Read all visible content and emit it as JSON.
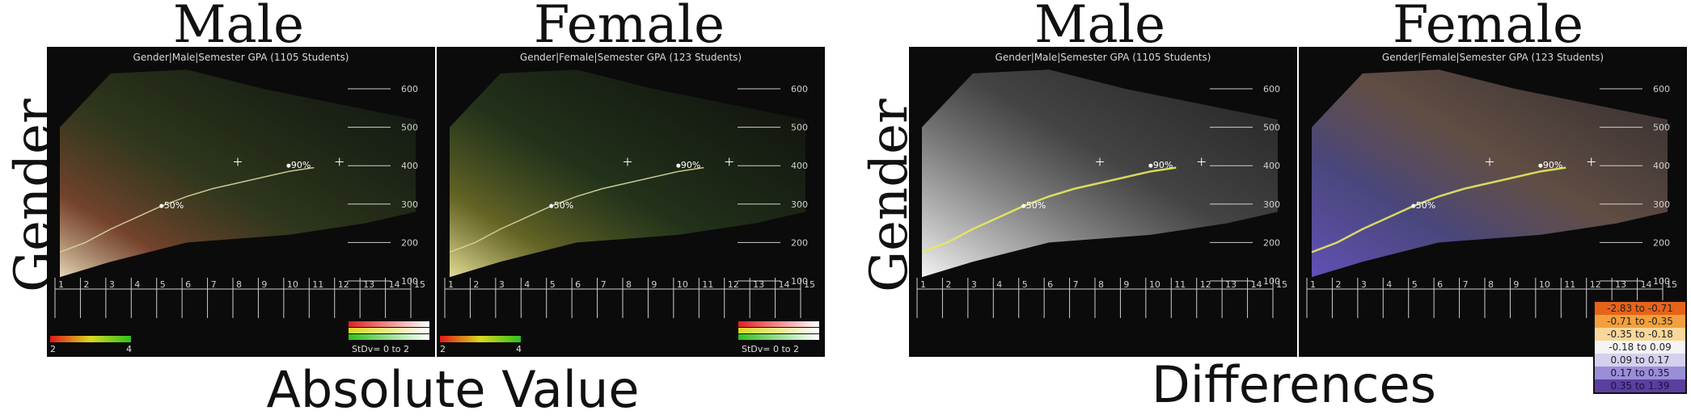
{
  "columns": {
    "left_male": "Male",
    "left_female": "Female",
    "right_male": "Male",
    "right_female": "Female"
  },
  "row_label": "Gender",
  "captions": {
    "absolute": "Absolute Value",
    "differences": "Differences"
  },
  "panels": [
    {
      "title": "Gender|Male|Semester GPA (1105 Students)",
      "style": "abs"
    },
    {
      "title": "Gender|Female|Semester GPA (123 Students)",
      "style": "abs"
    },
    {
      "title": "Gender|Male|Semester GPA (1105 Students)",
      "style": "diff"
    },
    {
      "title": "Gender|Female|Semester GPA (123 Students)",
      "style": "diff"
    }
  ],
  "axis": {
    "x_ticks": [
      "1",
      "2",
      "3",
      "4",
      "5",
      "6",
      "7",
      "8",
      "9",
      "10",
      "11",
      "12",
      "13",
      "14",
      "15"
    ],
    "y_ticks": [
      "100",
      "200",
      "300",
      "400",
      "500",
      "600"
    ]
  },
  "percentile_labels": {
    "p50": "50%",
    "p90": "90%"
  },
  "color_scale": {
    "min": "2",
    "max": "4",
    "stdev": "StDv= 0 to 2"
  },
  "diff_legend": [
    {
      "label": "-2.83 to -0.71",
      "color": "#e8631a"
    },
    {
      "label": "-0.71 to -0.35",
      "color": "#f2a03d"
    },
    {
      "label": "-0.35 to -0.18",
      "color": "#f8d79a"
    },
    {
      "label": "-0.18 to 0.09",
      "color": "#f4f4f4"
    },
    {
      "label": "0.09 to 0.17",
      "color": "#d6d0ee"
    },
    {
      "label": "0.17 to 0.35",
      "color": "#9a8fd6"
    },
    {
      "label": "0.35 to 1.39",
      "color": "#5a3f9f"
    }
  ],
  "chart_data": {
    "type": "line",
    "xlabel": "",
    "ylabel": "",
    "xlim": [
      1,
      15
    ],
    "ylim": [
      100,
      650
    ],
    "series": [
      {
        "name": "50%",
        "x": [
          1,
          2,
          3,
          4,
          5,
          6,
          7,
          8,
          9,
          10,
          11
        ],
        "y": [
          175,
          200,
          235,
          265,
          295,
          320,
          340,
          355,
          370,
          385,
          395
        ]
      },
      {
        "name": "90%",
        "x": [
          10
        ],
        "y": [
          400
        ]
      }
    ]
  }
}
